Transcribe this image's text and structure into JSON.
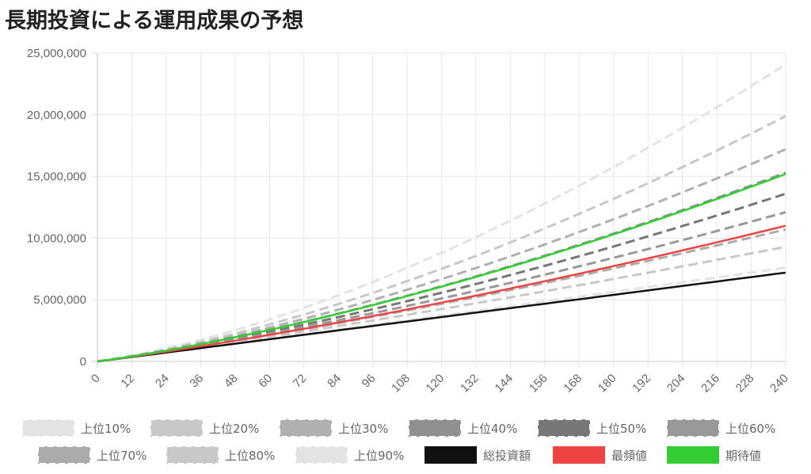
{
  "title": "長期投資による運用成果の予想",
  "chart_data": {
    "type": "line",
    "title": "長期投資による運用成果の予想",
    "xlabel": "",
    "ylabel": "",
    "x": [
      0,
      12,
      24,
      36,
      48,
      60,
      72,
      84,
      96,
      108,
      120,
      132,
      144,
      156,
      168,
      180,
      192,
      204,
      216,
      228,
      240
    ],
    "x_ticks": [
      "0",
      "12",
      "24",
      "36",
      "48",
      "60",
      "72",
      "84",
      "96",
      "108",
      "120",
      "132",
      "144",
      "156",
      "168",
      "180",
      "192",
      "204",
      "216",
      "228",
      "240"
    ],
    "ylim": [
      0,
      25000000
    ],
    "y_ticks": [
      "0",
      "5,000,000",
      "10,000,000",
      "15,000,000",
      "20,000,000",
      "25,000,000"
    ],
    "grid": true,
    "legend_position": "bottom",
    "series": [
      {
        "name": "上位10%",
        "color": "#e3e3e3",
        "dash": true,
        "end_value": 24100000
      },
      {
        "name": "上位20%",
        "color": "#c8c8c8",
        "dash": true,
        "end_value": 19900000
      },
      {
        "name": "上位30%",
        "color": "#b0b0b0",
        "dash": true,
        "end_value": 17200000
      },
      {
        "name": "上位40%",
        "color": "#909090",
        "dash": true,
        "end_value": 15300000
      },
      {
        "name": "上位50%",
        "color": "#777777",
        "dash": true,
        "end_value": 13600000
      },
      {
        "name": "上位60%",
        "color": "#999999",
        "dash": true,
        "end_value": 12100000
      },
      {
        "name": "上位70%",
        "color": "#ababab",
        "dash": true,
        "end_value": 10700000
      },
      {
        "name": "上位80%",
        "color": "#c8c8c8",
        "dash": true,
        "end_value": 9300000
      },
      {
        "name": "上位90%",
        "color": "#e3e3e3",
        "dash": true,
        "end_value": 7600000
      },
      {
        "name": "総投資額",
        "color": "#111111",
        "dash": false,
        "end_value": 7200000
      },
      {
        "name": "最頻値",
        "color": "#ee4444",
        "dash": false,
        "end_value": 11000000
      },
      {
        "name": "期待値",
        "color": "#33cc33",
        "dash": false,
        "end_value": 15200000
      }
    ]
  }
}
